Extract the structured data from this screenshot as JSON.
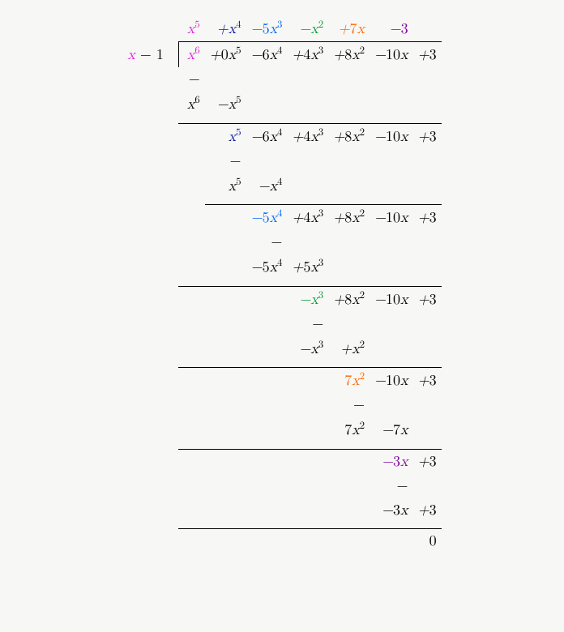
{
  "colors": {
    "magenta": "#e619e6",
    "navy": "#001199",
    "blue": "#0066ff",
    "green": "#009933",
    "orange": "#ff6600",
    "purple": "#8000a0",
    "black": "#000000",
    "bg": "#f7f7f5"
  },
  "divisor_html": "<span class='c-magenta'>x</span> <span class='num'>−</span> <span class='num'>1</span>",
  "quotient": [
    {
      "html": "x<sup>5</sup>",
      "color": "magenta"
    },
    {
      "html": "+x<sup>4</sup>",
      "color": "navy"
    },
    {
      "html": "−<span class='num'>5</span>x<sup>3</sup>",
      "color": "blue"
    },
    {
      "html": "−x<sup>2</sup>",
      "color": "green"
    },
    {
      "html": "+<span class='num'>7</span>x",
      "color": "orange"
    },
    {
      "html": "−<span class='num'>3</span>",
      "color": "purple"
    }
  ],
  "dividend": [
    {
      "html": "x<sup>6</sup>",
      "color": "magenta"
    },
    {
      "html": "+<span class='num'>0</span>x<sup>5</sup>"
    },
    {
      "html": "−<span class='num'>6</span>x<sup>4</sup>"
    },
    {
      "html": "+<span class='num'>4</span>x<sup>3</sup>"
    },
    {
      "html": "+<span class='num'>8</span>x<sup>2</sup>"
    },
    {
      "html": "−<span class='num'>10</span>x"
    },
    {
      "html": "+<span class='num'>3</span>"
    }
  ],
  "steps": [
    {
      "minus_col": 1,
      "sub": {
        "start": 1,
        "terms": [
          "x<sup>6</sup>",
          "−x<sup>5</sup>"
        ]
      },
      "rule": {
        "start": 1,
        "end": 8
      },
      "result": {
        "start": 2,
        "color_first": "navy",
        "terms": [
          "x<sup>5</sup>",
          "−<span class='num'>6</span>x<sup>4</sup>",
          "+<span class='num'>4</span>x<sup>3</sup>",
          "+<span class='num'>8</span>x<sup>2</sup>",
          "−<span class='num'>10</span>x",
          "+<span class='num'>3</span>"
        ]
      }
    },
    {
      "minus_col": 2,
      "sub": {
        "start": 2,
        "terms": [
          "x<sup>5</sup>",
          "−x<sup>4</sup>"
        ]
      },
      "rule": {
        "start": 2,
        "end": 8
      },
      "result": {
        "start": 3,
        "color_first": "blue",
        "terms": [
          "−<span class='num'>5</span>x<sup>4</sup>",
          "+<span class='num'>4</span>x<sup>3</sup>",
          "+<span class='num'>8</span>x<sup>2</sup>",
          "−<span class='num'>10</span>x",
          "+<span class='num'>3</span>"
        ]
      }
    },
    {
      "minus_col": 3,
      "sub": {
        "start": 3,
        "terms": [
          "−<span class='num'>5</span>x<sup>4</sup>",
          "+<span class='num'>5</span>x<sup>3</sup>"
        ]
      },
      "rule": {
        "start": 1,
        "end": 8
      },
      "result": {
        "start": 4,
        "color_first": "green",
        "terms": [
          "−x<sup>3</sup>",
          "+<span class='num'>8</span>x<sup>2</sup>",
          "−<span class='num'>10</span>x",
          "+<span class='num'>3</span>"
        ]
      }
    },
    {
      "minus_col": 4,
      "sub": {
        "start": 4,
        "terms": [
          "−x<sup>3</sup>",
          "+x<sup>2</sup>"
        ]
      },
      "rule": {
        "start": 1,
        "end": 8
      },
      "result": {
        "start": 5,
        "color_first": "orange",
        "terms": [
          "<span class='num'>7</span>x<sup>2</sup>",
          "−<span class='num'>10</span>x",
          "+<span class='num'>3</span>"
        ]
      }
    },
    {
      "minus_col": 5,
      "sub": {
        "start": 5,
        "terms": [
          "<span class='num'>7</span>x<sup>2</sup>",
          "−<span class='num'>7</span>x"
        ]
      },
      "rule": {
        "start": 1,
        "end": 8
      },
      "result": {
        "start": 6,
        "color_first": "purple",
        "terms": [
          "−<span class='num'>3</span>x",
          "+<span class='num'>3</span>"
        ]
      }
    },
    {
      "minus_col": 6,
      "sub": {
        "start": 6,
        "terms": [
          "−<span class='num'>3</span>x",
          "+<span class='num'>3</span>"
        ]
      },
      "rule": {
        "start": 1,
        "end": 8
      },
      "result": {
        "start": 7,
        "terms": [
          "<span class='num'>0</span>"
        ]
      }
    }
  ],
  "minus_glyph": "−"
}
